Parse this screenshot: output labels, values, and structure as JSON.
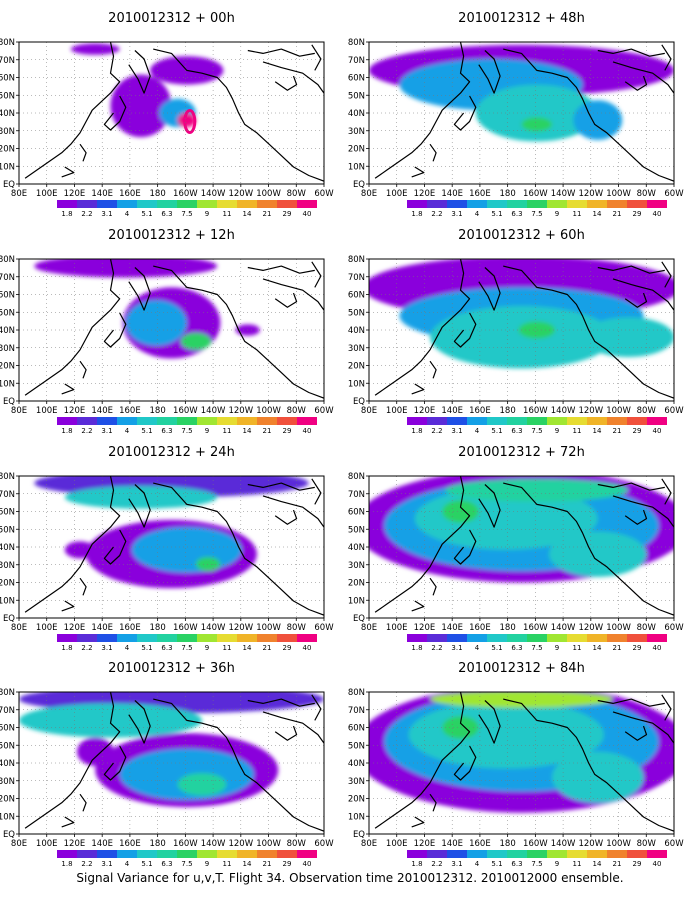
{
  "figure": {
    "footer": "Signal Variance for u,v,T. Flight 34. Observation time 2010012312. 2010012000 ensemble."
  },
  "lat_labels": [
    "80N",
    "70N",
    "60N",
    "50N",
    "40N",
    "30N",
    "20N",
    "10N",
    "EQ"
  ],
  "lon_labels": [
    "80E",
    "100E",
    "120E",
    "140E",
    "160E",
    "180",
    "160W",
    "140W",
    "120W",
    "100W",
    "80W",
    "60W"
  ],
  "colorbar": {
    "labels": [
      "1.8",
      "2.2",
      "3.1",
      "4",
      "5.1",
      "6.3",
      "7.5",
      "9",
      "11",
      "14",
      "21",
      "29",
      "40"
    ],
    "colors": [
      "#8a00dc",
      "#5a2cd8",
      "#1f50e6",
      "#14a0e6",
      "#20c8c8",
      "#22d2a0",
      "#2ad264",
      "#a0e632",
      "#e6dc32",
      "#f0b428",
      "#f0822d",
      "#f0503c",
      "#f00082"
    ]
  },
  "panels": [
    {
      "title": "2010012312 + 00h",
      "hours": 0
    },
    {
      "title": "2010012312 + 48h",
      "hours": 48
    },
    {
      "title": "2010012312 + 12h",
      "hours": 12
    },
    {
      "title": "2010012312 + 60h",
      "hours": 60
    },
    {
      "title": "2010012312 + 24h",
      "hours": 24
    },
    {
      "title": "2010012312 + 72h",
      "hours": 72
    },
    {
      "title": "2010012312 + 36h",
      "hours": 36
    },
    {
      "title": "2010012312 + 84h",
      "hours": 84
    }
  ]
}
